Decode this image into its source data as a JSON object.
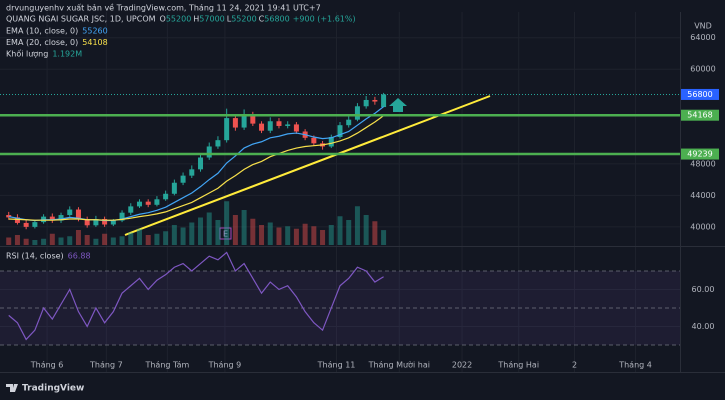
{
  "header": {
    "attribution": "drvunguyenhv xuất bản về TradingView.com, Tháng 11 24, 2021 19:41 UTC+7"
  },
  "chart_data": [
    {
      "type": "candlestick",
      "title": "QUANG NGAI SUGAR JSC, 1D, UPCOM",
      "ohlc_labels": [
        "O",
        "H",
        "L",
        "C"
      ],
      "change_label": "+900 (+1.61%)",
      "currency": "VND",
      "open": [
        41500,
        41200,
        40500,
        40000,
        40600,
        41300,
        40800,
        41500,
        42200,
        41000,
        40200,
        41000,
        40300,
        40800,
        41800,
        42600,
        43200,
        42800,
        43500,
        44200,
        45600,
        46500,
        47300,
        48800,
        50200,
        51000,
        53800,
        52600,
        54300,
        53100,
        52200,
        53400,
        52800,
        53000,
        52100,
        51300,
        50600,
        50200,
        51400,
        52900,
        53600,
        55300,
        56100,
        55200
      ],
      "high": [
        41900,
        41600,
        40900,
        40900,
        41600,
        41700,
        41800,
        42600,
        42500,
        41300,
        41400,
        41300,
        41000,
        42100,
        43000,
        43500,
        43500,
        43900,
        44600,
        46000,
        46900,
        47800,
        49300,
        50700,
        51500,
        55000,
        54200,
        54900,
        54600,
        53400,
        53900,
        53800,
        53400,
        53300,
        52400,
        51600,
        50900,
        51700,
        53300,
        54000,
        55700,
        56600,
        56500,
        57000
      ],
      "low": [
        40900,
        40300,
        39700,
        39800,
        40400,
        40500,
        40500,
        41300,
        40700,
        39900,
        40000,
        40000,
        40100,
        40600,
        41500,
        42400,
        42500,
        42600,
        43300,
        44000,
        45300,
        46200,
        47000,
        48500,
        49900,
        50700,
        52200,
        52300,
        52800,
        51900,
        51900,
        52500,
        52500,
        51800,
        51000,
        50300,
        49800,
        50000,
        51200,
        52600,
        53400,
        55000,
        55500,
        55200
      ],
      "close": [
        41200,
        40500,
        40000,
        40600,
        41300,
        40800,
        41500,
        42200,
        41000,
        40200,
        41000,
        40300,
        40800,
        41800,
        42600,
        43200,
        42800,
        43500,
        44200,
        45600,
        46500,
        47300,
        48800,
        50200,
        51000,
        53800,
        52600,
        54300,
        53100,
        52200,
        53400,
        52800,
        53000,
        52100,
        51300,
        50600,
        50200,
        51400,
        52900,
        53600,
        55300,
        56100,
        55900,
        56800
      ],
      "up_color": "#26a69a",
      "down_color": "#ef5350",
      "last_price_color": "#2962ff",
      "series": [
        {
          "name": "EMA (10, close, 0)",
          "color": "#42a5f5",
          "values": [
            41300,
            41100,
            40900,
            40800,
            40900,
            40900,
            41000,
            41200,
            41100,
            40900,
            40900,
            40800,
            40800,
            41000,
            41300,
            41600,
            41800,
            42100,
            42500,
            43100,
            43700,
            44300,
            45100,
            46000,
            46800,
            48100,
            49000,
            50000,
            50500,
            50800,
            51300,
            51500,
            51800,
            51900,
            51700,
            51400,
            51200,
            51300,
            51700,
            52100,
            52900,
            53700,
            54400,
            55260
          ]
        },
        {
          "name": "EMA (20, close, 0)",
          "color": "#f7e04b",
          "values": [
            41000,
            40950,
            40900,
            40850,
            40850,
            40850,
            40900,
            41000,
            41000,
            40900,
            40900,
            40850,
            40850,
            40950,
            41100,
            41300,
            41450,
            41650,
            41900,
            42300,
            42700,
            43100,
            43700,
            44300,
            44900,
            45800,
            46500,
            47300,
            47900,
            48300,
            48900,
            49300,
            49700,
            50000,
            50200,
            50300,
            50400,
            50600,
            50900,
            51300,
            51900,
            52600,
            53300,
            54108
          ]
        }
      ],
      "volume": {
        "name": "Khối lượng",
        "color": "#26a69a",
        "last_label": "1.192M",
        "vlim": [
          0,
          6
        ],
        "values": [
          0.6,
          0.8,
          0.5,
          0.4,
          0.5,
          0.9,
          0.6,
          0.7,
          1.2,
          0.8,
          0.5,
          0.9,
          0.6,
          0.7,
          1.0,
          1.3,
          0.8,
          0.9,
          1.1,
          1.6,
          1.4,
          1.8,
          2.2,
          2.6,
          2.0,
          3.5,
          2.4,
          2.8,
          2.1,
          1.6,
          1.8,
          1.4,
          1.5,
          1.3,
          1.7,
          1.5,
          1.2,
          1.6,
          2.3,
          2.0,
          3.1,
          2.4,
          1.9,
          1.192
        ]
      },
      "levels": [
        {
          "value": 54168,
          "color": "#4caf50"
        },
        {
          "value": 49239,
          "color": "#4caf50"
        }
      ],
      "earnings_marker": "E",
      "ylim": [
        37700,
        66500
      ],
      "yticks": [
        40000,
        44000,
        48000,
        60000,
        64000
      ],
      "xlim": [
        0,
        78
      ],
      "xticks": [
        {
          "value": 5.4,
          "label": "Tháng 6"
        },
        {
          "value": 12.2,
          "label": "Tháng 7"
        },
        {
          "value": 19.2,
          "label": "Tháng Tám"
        },
        {
          "value": 25.8,
          "label": "Tháng 9"
        },
        {
          "value": 38.6,
          "label": "Tháng 11"
        },
        {
          "value": 45.8,
          "label": "Tháng Mười hai"
        },
        {
          "value": 53,
          "label": "2022"
        },
        {
          "value": 59.5,
          "label": "Tháng Hai"
        },
        {
          "value": 65.9,
          "label": "2"
        },
        {
          "value": 72.9,
          "label": "Tháng 4"
        }
      ],
      "grid": true
    },
    {
      "type": "line",
      "series": [
        {
          "name": "RSI (14, close)",
          "color": "#7e57c2",
          "values": [
            46,
            42,
            33,
            38,
            50,
            44,
            52,
            60,
            48,
            40,
            50,
            42,
            48,
            58,
            62,
            66,
            60,
            65,
            68,
            72,
            74,
            70,
            74,
            78,
            76,
            80,
            70,
            74,
            66,
            58,
            64,
            60,
            62,
            56,
            48,
            42,
            38,
            50,
            62,
            66,
            72,
            70,
            64,
            66.88
          ]
        }
      ],
      "ylim": [
        26.2,
        82.4
      ],
      "yticks": [
        {
          "value": 40,
          "label": "40.00"
        },
        {
          "value": 60,
          "label": "60.00"
        }
      ],
      "levels": [
        30,
        50,
        70
      ],
      "band_color": "#7e57c2"
    }
  ],
  "footer": {
    "logo": "TradingView"
  }
}
